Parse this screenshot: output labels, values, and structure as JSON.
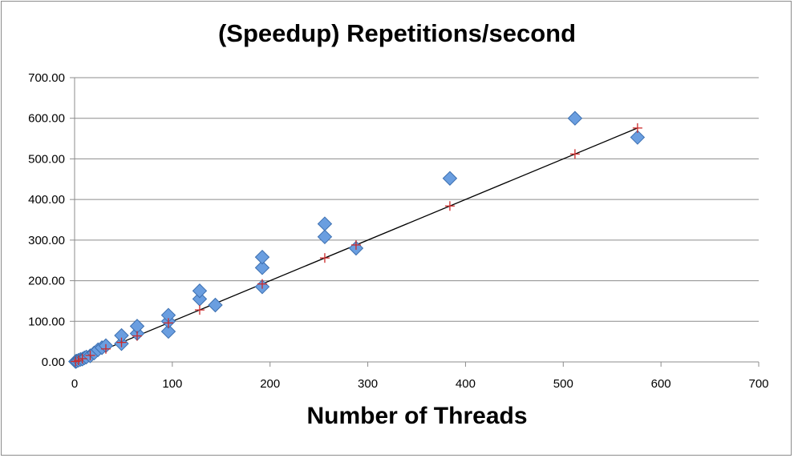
{
  "chart_data": {
    "type": "scatter",
    "title": "(Speedup)  Repetitions/second",
    "xlabel": "Number of Threads",
    "ylabel": "",
    "xlim": [
      0,
      700
    ],
    "ylim": [
      0,
      700
    ],
    "x_ticks": [
      "0",
      "100",
      "200",
      "300",
      "400",
      "500",
      "600",
      "700"
    ],
    "y_ticks": [
      "0.00",
      "100.00",
      "200.00",
      "300.00",
      "400.00",
      "500.00",
      "600.00",
      "700.00"
    ],
    "grid": "horizontal",
    "legend": "none",
    "series": [
      {
        "marker": "diamond",
        "color": "#6a9ee0",
        "points": [
          [
            1,
            1
          ],
          [
            2,
            2
          ],
          [
            4,
            4
          ],
          [
            6,
            6
          ],
          [
            8,
            7
          ],
          [
            10,
            10
          ],
          [
            12,
            12
          ],
          [
            16,
            15
          ],
          [
            20,
            22
          ],
          [
            24,
            30
          ],
          [
            28,
            35
          ],
          [
            32,
            40
          ],
          [
            48,
            45
          ],
          [
            48,
            65
          ],
          [
            64,
            70
          ],
          [
            64,
            88
          ],
          [
            96,
            75
          ],
          [
            96,
            100
          ],
          [
            96,
            115
          ],
          [
            128,
            155
          ],
          [
            128,
            175
          ],
          [
            144,
            140
          ],
          [
            192,
            185
          ],
          [
            192,
            232
          ],
          [
            192,
            258
          ],
          [
            256,
            308
          ],
          [
            256,
            340
          ],
          [
            288,
            280
          ],
          [
            384,
            452
          ],
          [
            512,
            600
          ],
          [
            576,
            553
          ]
        ]
      },
      {
        "marker": "plus",
        "color": "#cc2a2a",
        "points": [
          [
            1,
            1
          ],
          [
            4,
            4
          ],
          [
            8,
            8
          ],
          [
            16,
            16
          ],
          [
            32,
            32
          ],
          [
            48,
            48
          ],
          [
            64,
            64
          ],
          [
            96,
            96
          ],
          [
            128,
            128
          ],
          [
            192,
            192
          ],
          [
            256,
            256
          ],
          [
            288,
            288
          ],
          [
            384,
            384
          ],
          [
            512,
            512
          ],
          [
            576,
            576
          ]
        ]
      }
    ],
    "trendline": {
      "color": "#000000",
      "from": [
        0,
        0
      ],
      "to": [
        576,
        576
      ]
    }
  }
}
